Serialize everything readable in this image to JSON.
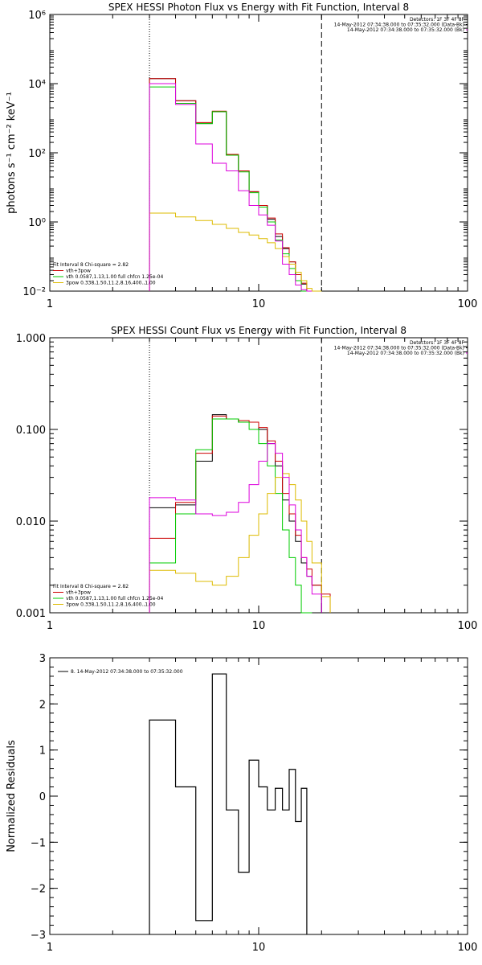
{
  "panels": [
    {
      "id": "photon",
      "title": "SPEX HESSI Photon Flux vs Energy with Fit Function, Interval 8",
      "header_lines": [
        "Detectors: 1F 3F 4F 8F",
        "14-May-2012 07:34:38.000 to 07:35:32.000 (Data-Bk)",
        "14-May-2012 07:34:38.000 to 07:35:32.000 (Bk)"
      ],
      "legend": [
        "Fit Interval 8   Chi-square = 2.82",
        "vth+3pow",
        "vth 0.0587,1.13,1.00  full chfcn 1.25e-04",
        "3pow 0.338,1.50,11.2,8.16,400.,1.00"
      ]
    },
    {
      "id": "count",
      "title": "SPEX HESSI Count Flux vs Energy with Fit Function, Interval 8",
      "header_lines": [
        "Detectors: 1F 3F 4F 8F",
        "14-May-2012 07:34:38.000 to 07:35:32.000 (Data-Bk)",
        "14-May-2012 07:34:38.000 to 07:35:32.000 (Bk)"
      ],
      "legend": [
        "Fit Interval 8   Chi-square = 2.82",
        "vth+3pow",
        "vth 0.0587,1.13,1.00  full chfcn 1.25e-04",
        "3pow 0.338,1.50,11.2,8.16,400.,1.00"
      ]
    },
    {
      "id": "resid",
      "title": "",
      "header_lines": [],
      "legend": [
        "8. 14-May-2012 07:34:38.000 to 07:35:32.000"
      ]
    }
  ],
  "colors": {
    "data": "#000000",
    "total": "#cc0000",
    "thermal": "#00cc00",
    "power": "#ddbb00",
    "background": "#dd00dd"
  },
  "chart_data": [
    {
      "type": "line",
      "title": "SPEX HESSI Photon Flux vs Energy with Fit Function, Interval 8",
      "xlabel": "",
      "ylabel": "photons s⁻¹ cm⁻² keV⁻¹",
      "x_scale": "log",
      "y_scale": "log",
      "xlim": [
        1,
        100
      ],
      "ylim": [
        0.01,
        1000000
      ],
      "x_ticks": [
        1,
        10,
        100
      ],
      "x_tick_labels": [
        "1",
        "10",
        "100"
      ],
      "y_ticks": [
        0.01,
        1,
        100,
        10000,
        1000000
      ],
      "y_tick_labels": [
        "10⁻²",
        "10⁰",
        "10²",
        "10⁴",
        "10⁶"
      ],
      "vlines": [
        {
          "x": 3,
          "style": "dotted"
        },
        {
          "x": 20,
          "style": "dashed"
        }
      ],
      "bin_edges": [
        3,
        4,
        5,
        6,
        7,
        8,
        9,
        10,
        11,
        12,
        13,
        14,
        15,
        16,
        17,
        18,
        20,
        22
      ],
      "series": [
        {
          "color_key": "data",
          "name": "",
          "values": [
            14000,
            3200,
            700,
            1550,
            85,
            30,
            7.5,
            3.0,
            1.2,
            0.38,
            0.17,
            0.07,
            0.03,
            0.016,
            null,
            null,
            null
          ]
        },
        {
          "color_key": "total",
          "name": "",
          "values": [
            14000,
            3200,
            750,
            1600,
            90,
            30,
            7.5,
            3.0,
            1.3,
            0.45,
            0.18,
            0.07,
            0.03,
            0.017,
            0.009,
            null,
            null
          ]
        },
        {
          "color_key": "thermal",
          "name": "",
          "values": [
            8000,
            2700,
            700,
            1550,
            85,
            28,
            7.0,
            2.7,
            1.0,
            0.3,
            0.12,
            0.045,
            0.02,
            0.008,
            null,
            null,
            null
          ]
        },
        {
          "color_key": "power",
          "name": "",
          "values": [
            1.8,
            1.4,
            1.1,
            0.85,
            0.65,
            0.5,
            0.42,
            0.33,
            0.25,
            0.17,
            0.1,
            0.06,
            0.035,
            0.02,
            0.012,
            0.008,
            null
          ]
        },
        {
          "color_key": "background",
          "name": "",
          "values": [
            10000,
            2500,
            180,
            50,
            30,
            8,
            3.0,
            1.6,
            0.8,
            0.28,
            0.06,
            0.03,
            0.015,
            0.011,
            0.009,
            null,
            null
          ]
        }
      ]
    },
    {
      "type": "line",
      "title": "SPEX HESSI Count Flux vs Energy with Fit Function, Interval 8",
      "xlabel": "",
      "ylabel": "",
      "x_scale": "log",
      "y_scale": "log",
      "xlim": [
        1,
        100
      ],
      "ylim": [
        0.001,
        1.0
      ],
      "x_ticks": [
        1,
        10,
        100
      ],
      "x_tick_labels": [
        "1",
        "10",
        "100"
      ],
      "y_ticks": [
        0.001,
        0.01,
        0.1,
        1.0
      ],
      "y_tick_labels": [
        "0.001",
        "0.010",
        "0.100",
        "1.000"
      ],
      "vlines": [
        {
          "x": 3,
          "style": "dotted"
        },
        {
          "x": 20,
          "style": "dashed"
        }
      ],
      "bin_edges": [
        3,
        4,
        5,
        6,
        7,
        8,
        9,
        10,
        11,
        12,
        13,
        14,
        15,
        16,
        17,
        18,
        20,
        22
      ],
      "series": [
        {
          "color_key": "data",
          "name": "",
          "values": [
            0.014,
            0.015,
            0.045,
            0.145,
            0.13,
            0.12,
            0.12,
            0.1,
            0.07,
            0.04,
            0.017,
            0.01,
            0.006,
            0.0035,
            0.0025,
            0.002,
            null
          ]
        },
        {
          "color_key": "total",
          "name": "",
          "values": [
            0.0065,
            0.016,
            0.055,
            0.14,
            0.13,
            0.125,
            0.12,
            0.105,
            0.075,
            0.045,
            0.02,
            0.012,
            0.007,
            0.004,
            0.003,
            0.002,
            0.0016
          ]
        },
        {
          "color_key": "thermal",
          "name": "",
          "values": [
            0.0035,
            0.012,
            0.06,
            0.13,
            0.13,
            0.12,
            0.1,
            0.07,
            0.04,
            0.02,
            0.008,
            0.004,
            0.002,
            0.001,
            0.0008,
            null,
            null
          ]
        },
        {
          "color_key": "power",
          "name": "",
          "values": [
            0.0029,
            0.0027,
            0.0022,
            0.002,
            0.0025,
            0.004,
            0.007,
            0.012,
            0.02,
            0.03,
            0.033,
            0.025,
            0.017,
            0.01,
            0.006,
            0.0035,
            0.0015
          ]
        },
        {
          "color_key": "background",
          "name": "",
          "values": [
            0.018,
            0.017,
            0.012,
            0.0115,
            0.0125,
            0.016,
            0.025,
            0.045,
            0.07,
            0.055,
            0.03,
            0.015,
            0.008,
            0.004,
            0.0025,
            0.0016,
            null
          ]
        }
      ]
    },
    {
      "type": "line",
      "title": "",
      "xlabel": "",
      "ylabel": "Normalized Residuals",
      "x_scale": "log",
      "y_scale": "linear",
      "xlim": [
        1,
        100
      ],
      "ylim": [
        -3,
        3
      ],
      "x_ticks": [
        1,
        10,
        100
      ],
      "x_tick_labels": [
        "1",
        "10",
        "100"
      ],
      "y_ticks": [
        -3,
        -2,
        -1,
        0,
        1,
        2,
        3
      ],
      "y_tick_labels": [
        "−3",
        "−2",
        "−1",
        "0",
        "1",
        "2",
        "3"
      ],
      "vlines": [],
      "bin_edges": [
        3,
        4,
        5,
        6,
        7,
        8,
        9,
        10,
        11,
        12,
        13,
        14,
        15,
        16,
        17,
        18,
        20
      ],
      "series": [
        {
          "color_key": "data",
          "name": "",
          "values": [
            1.65,
            0.2,
            -2.7,
            2.65,
            -0.3,
            -1.65,
            0.78,
            0.2,
            -0.3,
            0.17,
            -0.3,
            0.58,
            -0.55,
            0.17
          ]
        }
      ]
    }
  ]
}
